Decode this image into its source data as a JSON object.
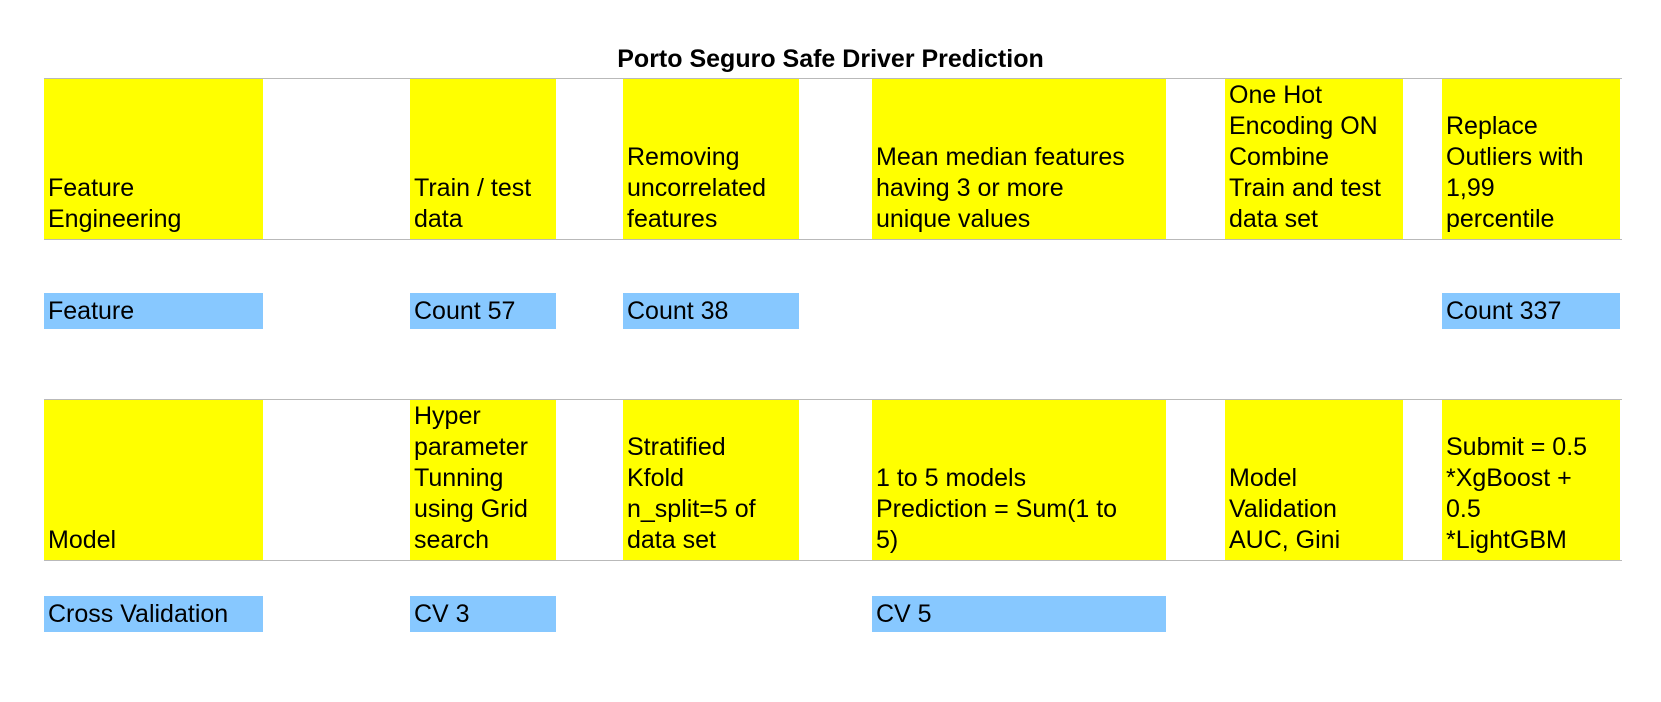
{
  "title": "Porto Seguro Safe Driver Prediction",
  "colors": {
    "step": "#ffff00",
    "metric": "#87c8ff",
    "rule": "#b9b9b9"
  },
  "feature_engineering": {
    "label": "Feature\nEngineering",
    "steps": [
      "Train / test\ndata",
      "Removing\nuncorrelated\nfeatures",
      "Mean median features\nhaving 3 or more\nunique values",
      "One Hot\nEncoding ON\nCombine\nTrain and test\ndata set",
      "Replace\nOutliers with\n1,99\npercentile"
    ]
  },
  "feature_counts": {
    "label": "Feature",
    "train_test": "Count 57",
    "uncorrelated": "Count 38",
    "outliers": "Count 337"
  },
  "model": {
    "label": "Model",
    "steps": [
      "Hyper\nparameter\nTunning\nusing Grid\nsearch",
      "Stratified\nKfold\nn_split=5 of\ndata set",
      "1 to 5 models\nPrediction = Sum(1 to\n5)",
      "Model\nValidation\nAUC, Gini",
      "Submit = 0.5\n*XgBoost +\n0.5\n*LightGBM"
    ]
  },
  "cross_validation": {
    "label": "Cross Validation",
    "grid_search": "CV 3",
    "models": "CV 5"
  }
}
